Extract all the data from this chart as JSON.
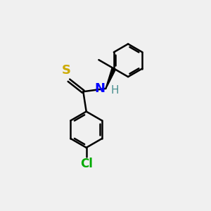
{
  "bg_color": "#f0f0f0",
  "bond_color": "#000000",
  "bond_width": 1.8,
  "atoms": {
    "S": {
      "color": "#ccaa00",
      "fontsize": 13,
      "fontweight": "bold"
    },
    "N": {
      "color": "#0000ff",
      "fontsize": 13,
      "fontweight": "bold"
    },
    "H": {
      "color": "#4a9090",
      "fontsize": 11,
      "fontweight": "normal"
    },
    "Cl": {
      "color": "#00aa00",
      "fontsize": 12,
      "fontweight": "bold"
    }
  },
  "scale": 10,
  "cos30": 0.866,
  "sin30": 0.5
}
